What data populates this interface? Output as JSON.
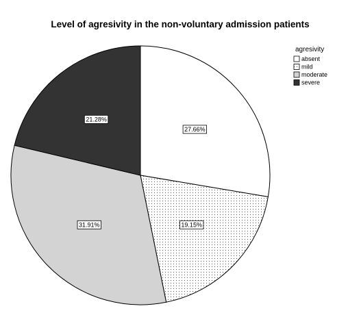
{
  "chart_data": {
    "type": "pie",
    "title": "Level of agresivity in the non-voluntary admission patients",
    "legend_title": "agresivity",
    "legend_position": "top-right",
    "slices": [
      {
        "label": "absent",
        "value": 27.66,
        "value_label": "27.66%",
        "fill": "#ffffff",
        "pattern": "none"
      },
      {
        "label": "mild",
        "value": 19.15,
        "value_label": "19.15%",
        "fill": "#ffffff",
        "pattern": "dots"
      },
      {
        "label": "moderate",
        "value": 31.91,
        "value_label": "31.91%",
        "fill": "#d3d3d3",
        "pattern": "none"
      },
      {
        "label": "severe",
        "value": 21.28,
        "value_label": "21.28%",
        "fill": "#333333",
        "pattern": "none"
      }
    ]
  }
}
